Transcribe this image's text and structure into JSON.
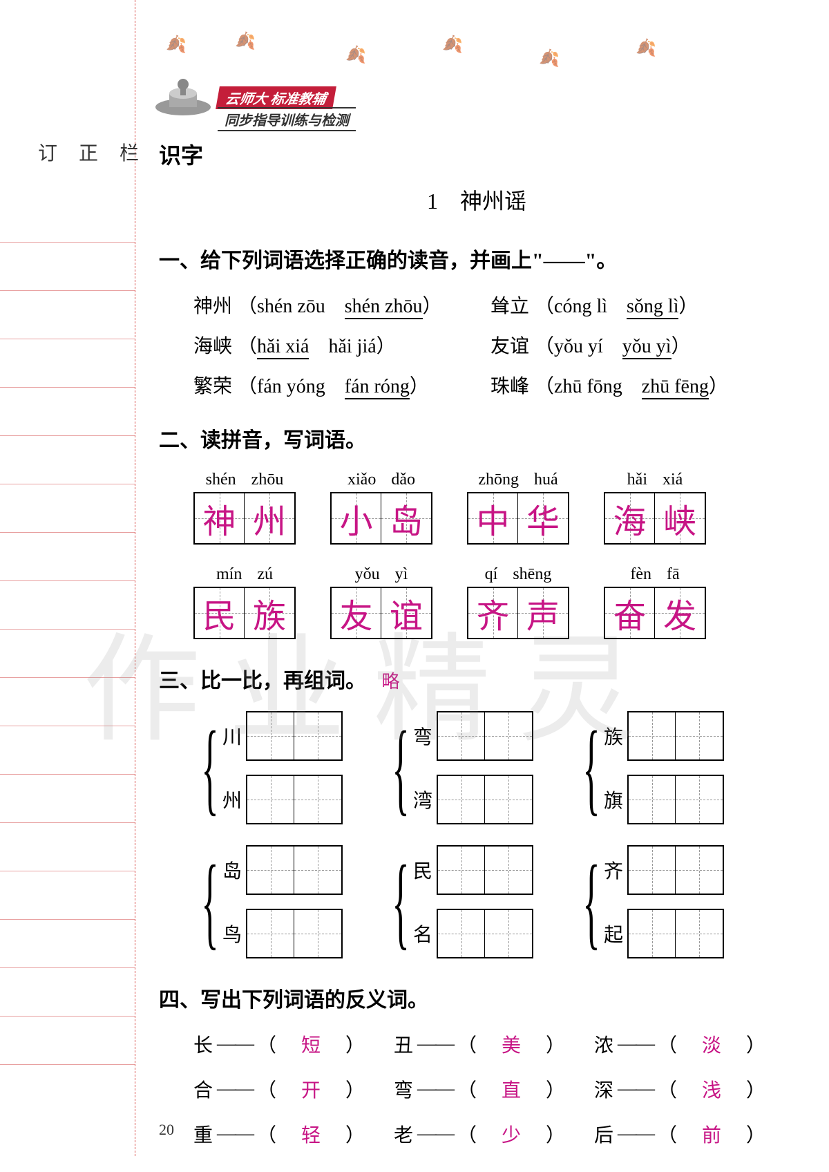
{
  "sidebar": {
    "label": "订 正 栏"
  },
  "header": {
    "banner_red": "云师大 标准教辅",
    "banner_sub": "同步指导训练与检测"
  },
  "section_title": "识字",
  "lesson_title": "1　神州谣",
  "q1": {
    "heading": "一、给下列词语选择正确的读音，并画上\"——\"。",
    "items": [
      {
        "word": "神州",
        "opt1": "shén zōu",
        "opt2": "shén zhōu",
        "correct": 2
      },
      {
        "word": "耸立",
        "opt1": "cóng lì",
        "opt2": "sǒng lì",
        "correct": 2
      },
      {
        "word": "海峡",
        "opt1": "hǎi xiá",
        "opt2": "hǎi jiá",
        "correct": 1
      },
      {
        "word": "友谊",
        "opt1": "yǒu yí",
        "opt2": "yǒu yì",
        "correct": 2
      },
      {
        "word": "繁荣",
        "opt1": "fán yóng",
        "opt2": "fán róng",
        "correct": 2
      },
      {
        "word": "珠峰",
        "opt1": "zhū fōng",
        "opt2": "zhū fēng",
        "correct": 2
      }
    ]
  },
  "q2": {
    "heading": "二、读拼音，写词语。",
    "row1": [
      {
        "pinyin": [
          "shén",
          "zhōu"
        ],
        "chars": [
          "神",
          "州"
        ]
      },
      {
        "pinyin": [
          "xiǎo",
          "dǎo"
        ],
        "chars": [
          "小",
          "岛"
        ]
      },
      {
        "pinyin": [
          "zhōng",
          "huá"
        ],
        "chars": [
          "中",
          "华"
        ]
      },
      {
        "pinyin": [
          "hǎi",
          "xiá"
        ],
        "chars": [
          "海",
          "峡"
        ]
      }
    ],
    "row2": [
      {
        "pinyin": [
          "mín",
          "zú"
        ],
        "chars": [
          "民",
          "族"
        ]
      },
      {
        "pinyin": [
          "yǒu",
          "yì"
        ],
        "chars": [
          "友",
          "谊"
        ]
      },
      {
        "pinyin": [
          "qí",
          "shēng"
        ],
        "chars": [
          "齐",
          "声"
        ]
      },
      {
        "pinyin": [
          "fèn",
          "fā"
        ],
        "chars": [
          "奋",
          "发"
        ]
      }
    ]
  },
  "q3": {
    "heading": "三、比一比，再组词。",
    "note": "略",
    "pairs": [
      [
        [
          "川",
          "州"
        ],
        [
          "弯",
          "湾"
        ],
        [
          "族",
          "旗"
        ]
      ],
      [
        [
          "岛",
          "鸟"
        ],
        [
          "民",
          "名"
        ],
        [
          "齐",
          "起"
        ]
      ]
    ]
  },
  "q4": {
    "heading": "四、写出下列词语的反义词。",
    "rows": [
      [
        {
          "w": "长",
          "a": "短"
        },
        {
          "w": "丑",
          "a": "美"
        },
        {
          "w": "浓",
          "a": "淡"
        }
      ],
      [
        {
          "w": "合",
          "a": "开"
        },
        {
          "w": "弯",
          "a": "直"
        },
        {
          "w": "深",
          "a": "浅"
        }
      ],
      [
        {
          "w": "重",
          "a": "轻"
        },
        {
          "w": "老",
          "a": "少"
        },
        {
          "w": "后",
          "a": "前"
        }
      ]
    ]
  },
  "watermark": "作业精灵",
  "page_num": "20",
  "colors": {
    "answer": "#c71585",
    "banner": "#c41e3a",
    "margin_line": "#d9534f"
  }
}
